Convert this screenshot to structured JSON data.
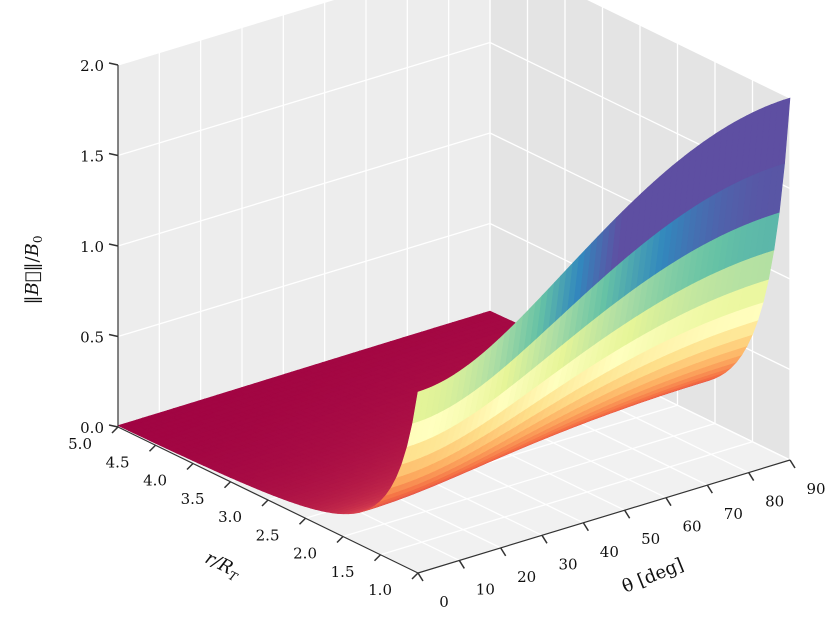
{
  "chart_data": {
    "type": "surface3d",
    "title": "",
    "xlabel": "θ [deg]",
    "ylabel": "r/R_T",
    "zlabel": "‖B⃗‖/B_0",
    "x_ticks": [
      "0",
      "10",
      "20",
      "30",
      "40",
      "50",
      "60",
      "70",
      "80",
      "90"
    ],
    "y_ticks": [
      "1.0",
      "1.5",
      "2.0",
      "2.5",
      "3.0",
      "3.5",
      "4.0",
      "4.5",
      "5.0"
    ],
    "z_ticks": [
      "0.0",
      "0.5",
      "1.0",
      "1.5",
      "2.0"
    ],
    "xlim": [
      0,
      90
    ],
    "ylim": [
      1.0,
      5.0
    ],
    "zlim": [
      0.0,
      2.0
    ],
    "grid": true,
    "colormap": "Spectral",
    "surface_model": "B/B0 = (1/r^3) * sqrt(1 + 3*sin(theta)^2)",
    "sampled_values": [
      {
        "r": 1.0,
        "theta": 0,
        "B": 1.0
      },
      {
        "r": 1.0,
        "theta": 30,
        "B": 1.32
      },
      {
        "r": 1.0,
        "theta": 60,
        "B": 1.8
      },
      {
        "r": 1.0,
        "theta": 90,
        "B": 2.0
      },
      {
        "r": 1.5,
        "theta": 90,
        "B": 0.59
      },
      {
        "r": 2.0,
        "theta": 90,
        "B": 0.25
      },
      {
        "r": 3.0,
        "theta": 90,
        "B": 0.07
      },
      {
        "r": 5.0,
        "theta": 90,
        "B": 0.02
      },
      {
        "r": 5.0,
        "theta": 0,
        "B": 0.01
      }
    ]
  },
  "style": {
    "pane_color": "#ededed",
    "grid_color": "#ffffff",
    "edge_color": "#333333"
  }
}
